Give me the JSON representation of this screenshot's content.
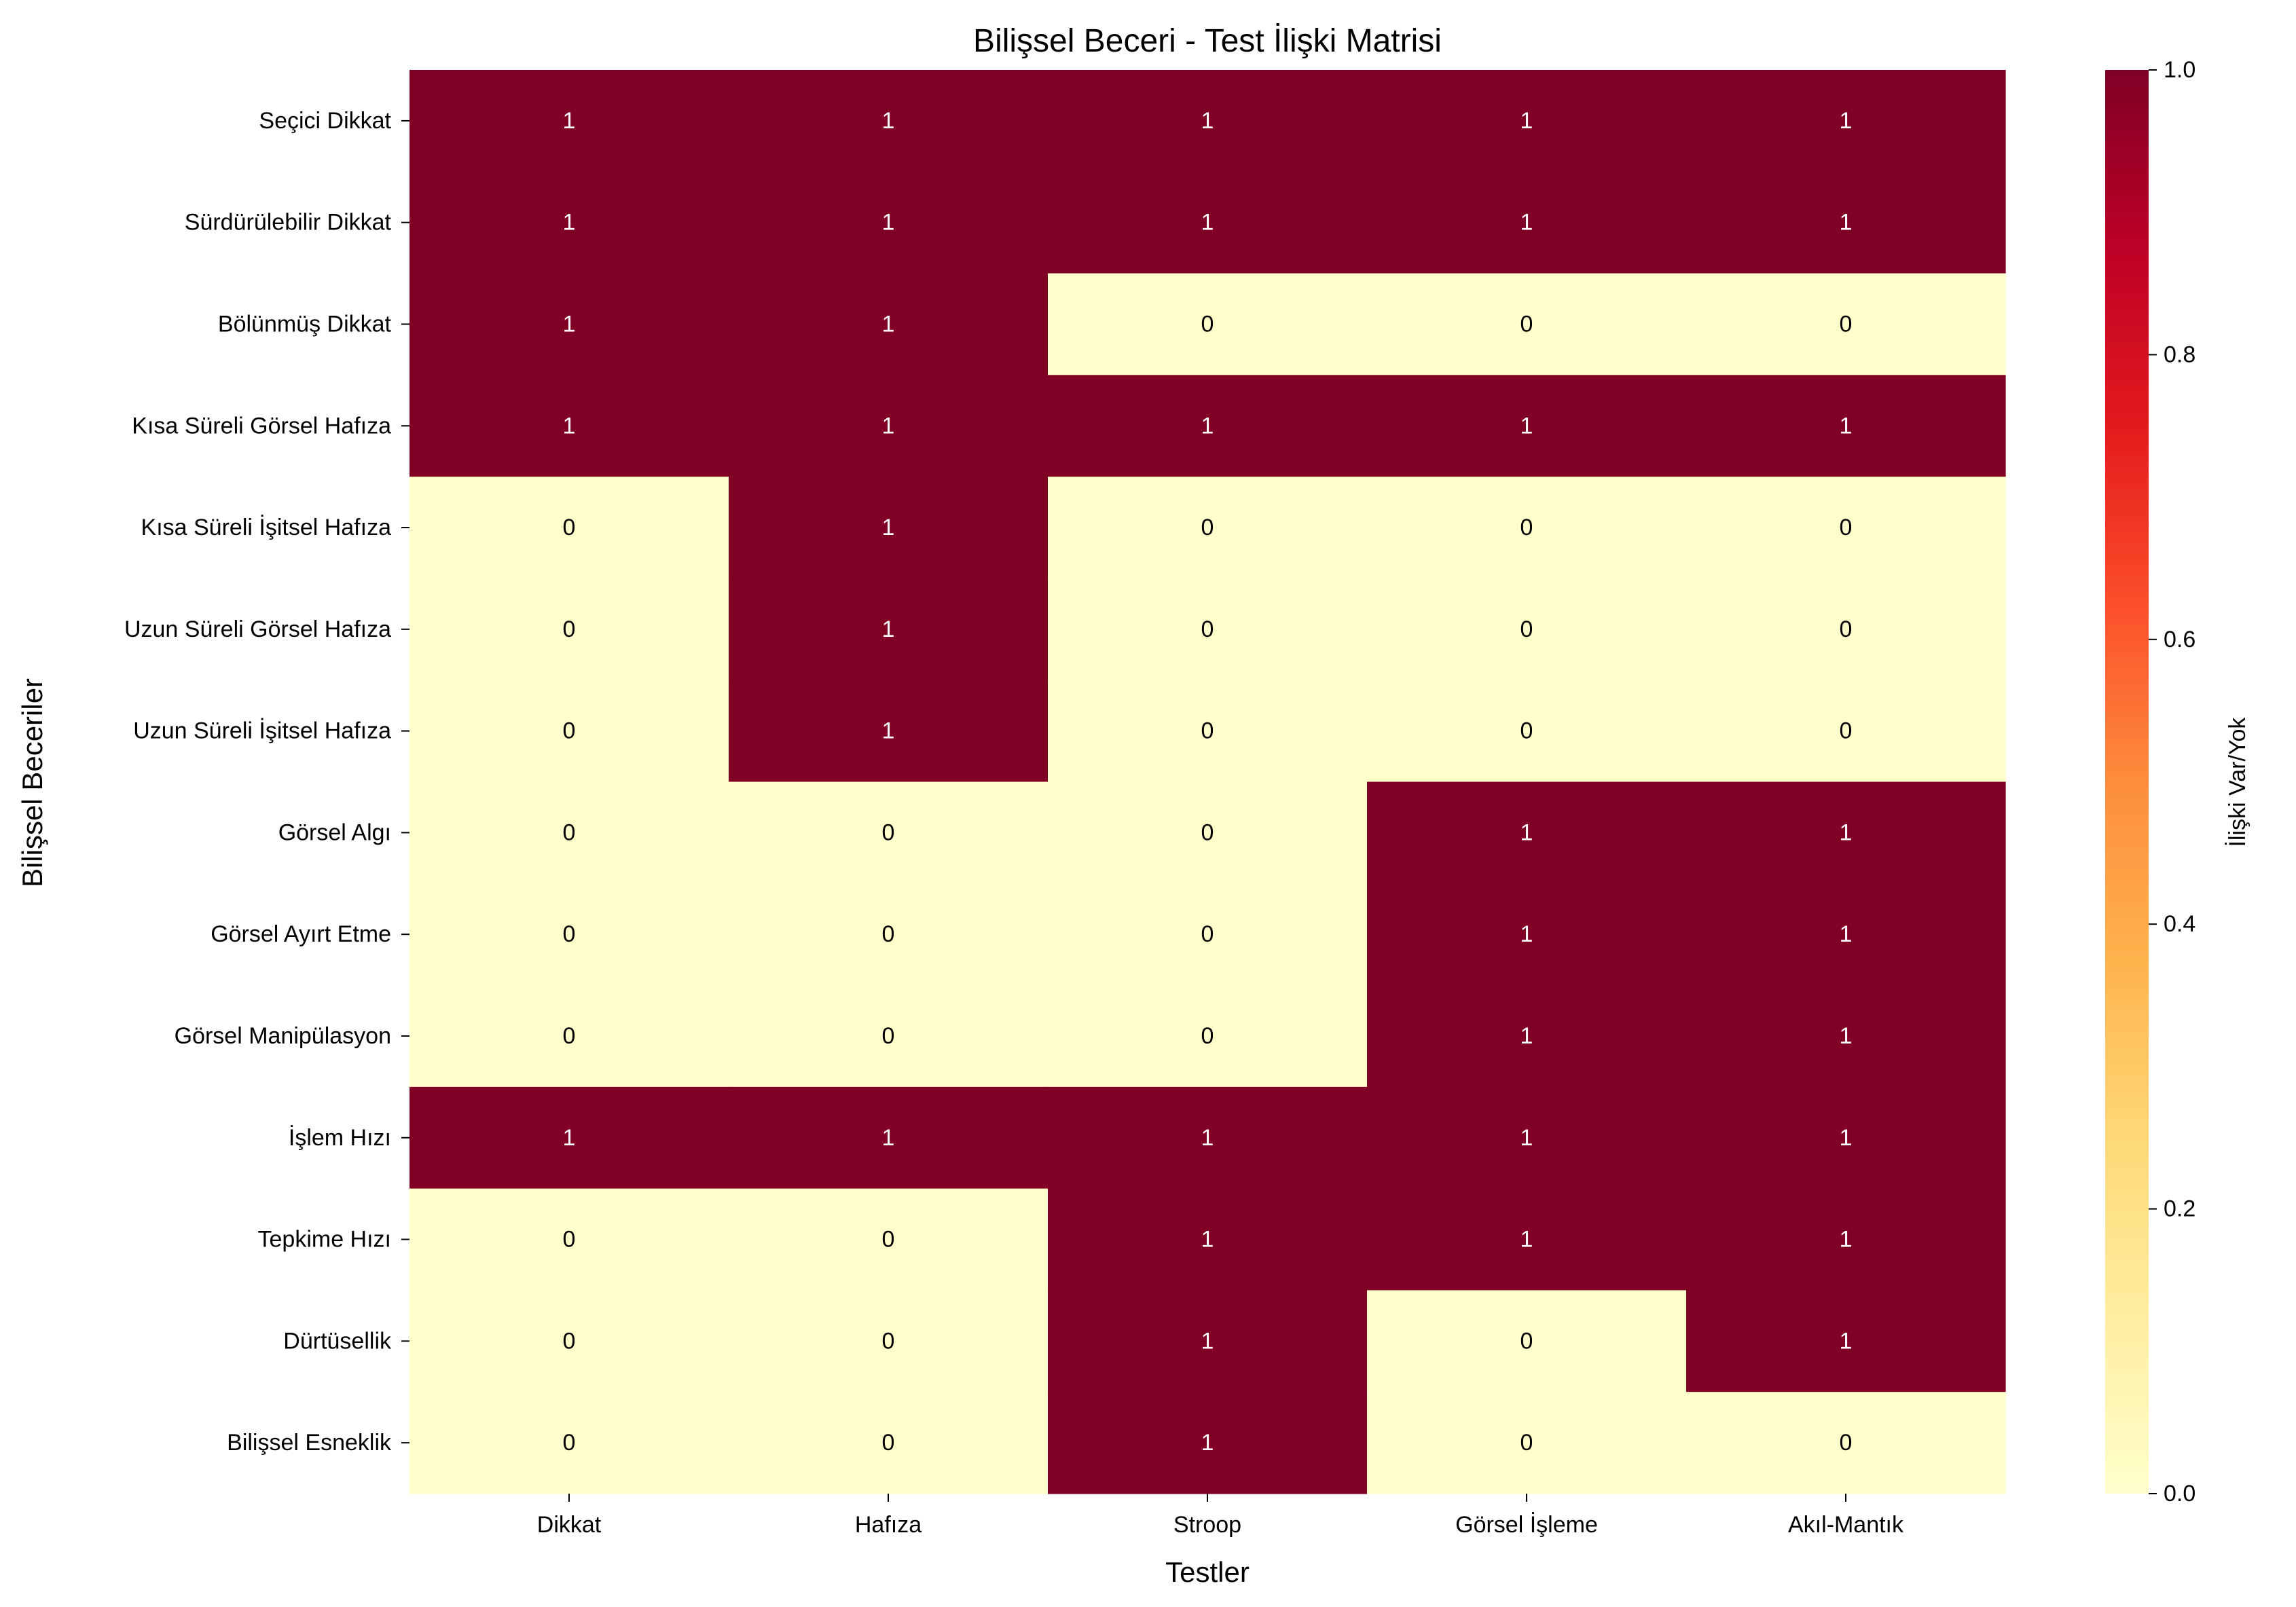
{
  "chart_data": {
    "type": "heatmap",
    "title": "Bilişsel Beceri - Test İlişki Matrisi",
    "xlabel": "Testler",
    "ylabel": "Bilişsel Beceriler",
    "x_categories": [
      "Dikkat",
      "Hafıza",
      "Stroop",
      "Görsel İşleme",
      "Akıl-Mantık"
    ],
    "y_categories": [
      "Seçici Dikkat",
      "Sürdürülebilir Dikkat",
      "Bölünmüş Dikkat",
      "Kısa Süreli Görsel Hafıza",
      "Kısa Süreli İşitsel Hafıza",
      "Uzun Süreli Görsel Hafıza",
      "Uzun Süreli İşitsel Hafıza",
      "Görsel Algı",
      "Görsel Ayırt Etme",
      "Görsel Manipülasyon",
      "İşlem Hızı",
      "Tepkime Hızı",
      "Dürtüsellik",
      "Bilişsel Esneklik"
    ],
    "values": [
      [
        1,
        1,
        1,
        1,
        1
      ],
      [
        1,
        1,
        1,
        1,
        1
      ],
      [
        1,
        1,
        0,
        0,
        0
      ],
      [
        1,
        1,
        1,
        1,
        1
      ],
      [
        0,
        1,
        0,
        0,
        0
      ],
      [
        0,
        1,
        0,
        0,
        0
      ],
      [
        0,
        1,
        0,
        0,
        0
      ],
      [
        0,
        0,
        0,
        1,
        1
      ],
      [
        0,
        0,
        0,
        1,
        1
      ],
      [
        0,
        0,
        0,
        1,
        1
      ],
      [
        1,
        1,
        1,
        1,
        1
      ],
      [
        0,
        0,
        1,
        1,
        1
      ],
      [
        0,
        0,
        1,
        0,
        1
      ],
      [
        0,
        0,
        1,
        0,
        0
      ]
    ],
    "colorbar": {
      "label": "İlişki Var/Yok",
      "range": [
        0,
        1
      ],
      "ticks": [
        "0.0",
        "0.2",
        "0.4",
        "0.6",
        "0.8",
        "1.0"
      ],
      "colormap": "YlOrRd",
      "stops": [
        "#ffffcc",
        "#ffeda0",
        "#fed976",
        "#feb24c",
        "#fd8d3c",
        "#fc4e2a",
        "#e31a1c",
        "#bd0026",
        "#800026"
      ]
    },
    "grid": false
  }
}
